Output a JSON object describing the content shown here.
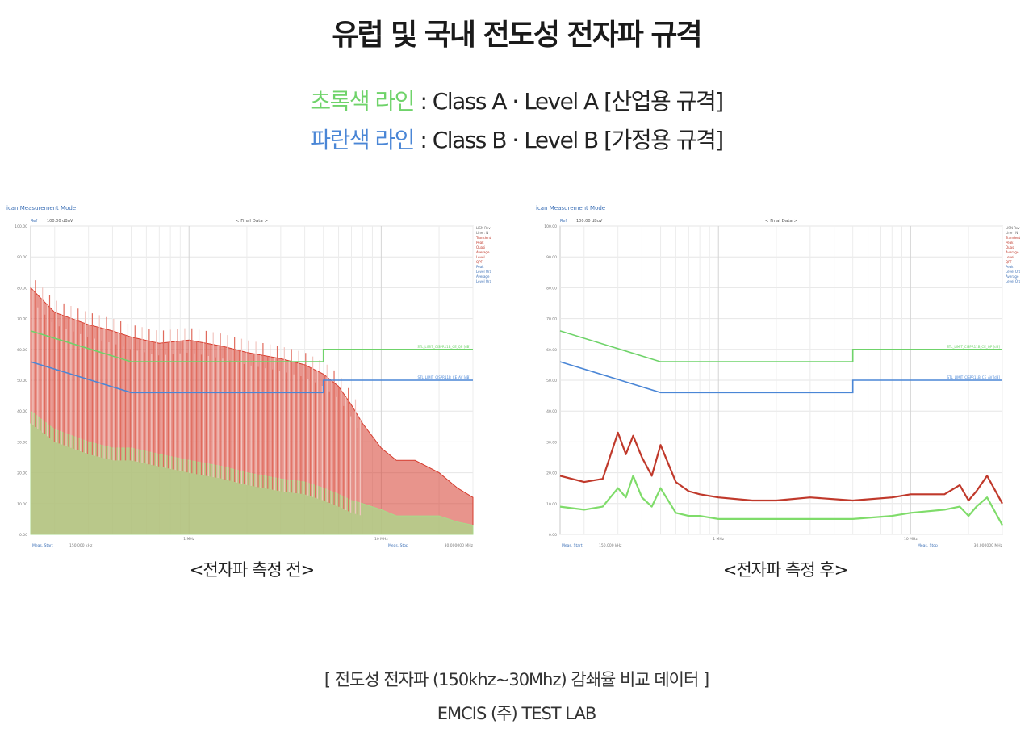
{
  "page": {
    "title": "유럽 및 국내 전도성 전자파 규격",
    "legend": [
      {
        "label": "초록색 라인",
        "text": " : Class A · Level A [산업용 규격]",
        "color": "#6fd36a"
      },
      {
        "label": "파란색 라인",
        "text": " : Class B · Level B [가정용 규격]",
        "color": "#4a86d6"
      }
    ],
    "footer": {
      "line1": "[ 전도성 전자파 (150khz~30Mhz) 감쇄율 비교 데이터 ]",
      "line2": "EMCIS (주) TEST LAB"
    }
  },
  "chart_data": [
    {
      "type": "line",
      "caption": "<전자파 측정 전>",
      "mode_label": "ican Measurement Mode",
      "ref_label": "Ref",
      "ref_value": "100.00 dBuV",
      "header_label": "< Final Data >",
      "x_scale": "log",
      "xlim": [
        0.15,
        30
      ],
      "ylim": [
        0,
        100
      ],
      "y_ticks": [
        "100.00",
        "90.00",
        "80.00",
        "70.00",
        "60.00",
        "50.00",
        "40.00",
        "30.00",
        "20.00",
        "10.00",
        "0.00"
      ],
      "x_ticks": [
        {
          "value": 1,
          "label": "1 MHz"
        },
        {
          "value": 10,
          "label": "10 MHz"
        }
      ],
      "footer_left": "Meas. Start",
      "footer_start": "150.000 kHz",
      "footer_mid": "Meas. Stop",
      "footer_stop": "30.000000 MHz",
      "side_legend": [
        "LISN Rev-1",
        "Line : N",
        "Transient",
        "Peak",
        "Quasi",
        "Average",
        "Level",
        "QPF",
        "Peak",
        "Level Ora",
        "Average",
        "Level Ora"
      ],
      "limit_labels": [
        "STL_LIMIT_CISPR11B_CE_QP [dB]",
        "STL_LIMIT_CISPR11B_CE_AV [dB]"
      ],
      "grid": true,
      "series": [
        {
          "name": "Class A · Level A",
          "color": "#6fd36a",
          "x": [
            0.15,
            0.5,
            0.5,
            5,
            5,
            30
          ],
          "y": [
            66,
            56,
            56,
            56,
            60,
            60
          ]
        },
        {
          "name": "Class B · Level B",
          "color": "#4a86d6",
          "x": [
            0.15,
            0.5,
            0.5,
            5,
            5,
            30
          ],
          "y": [
            56,
            46,
            46,
            46,
            50,
            50
          ]
        },
        {
          "color": "#d63c2e",
          "x": [
            0.15,
            0.2,
            0.3,
            0.4,
            0.5,
            0.7,
            1,
            1.5,
            2,
            3,
            4,
            5,
            6,
            7,
            8,
            10,
            12,
            15,
            20,
            25,
            30
          ],
          "y": [
            80,
            72,
            68,
            66,
            64,
            62,
            63,
            61,
            59,
            57,
            55,
            52,
            48,
            42,
            36,
            28,
            24,
            24,
            20,
            15,
            12
          ]
        },
        {
          "color": "#a9d98a",
          "x": [
            0.15,
            0.2,
            0.3,
            0.4,
            0.5,
            0.7,
            1,
            1.5,
            2,
            3,
            4,
            5,
            6,
            7,
            8,
            10,
            12,
            15,
            20,
            25,
            30
          ],
          "y": [
            40,
            34,
            30,
            28,
            28,
            26,
            24,
            22,
            20,
            18,
            17,
            15,
            13,
            11,
            10,
            8,
            6,
            6,
            6,
            4,
            3
          ]
        }
      ]
    },
    {
      "type": "line",
      "caption": "<전자파 측정 후>",
      "mode_label": "ican Measurement Mode",
      "ref_label": "Ref",
      "ref_value": "100.00 dBuV",
      "header_label": "< Final Data >",
      "x_scale": "log",
      "xlim": [
        0.15,
        30
      ],
      "ylim": [
        0,
        100
      ],
      "y_ticks": [
        "100.00",
        "90.00",
        "80.00",
        "70.00",
        "60.00",
        "50.00",
        "40.00",
        "30.00",
        "20.00",
        "10.00",
        "0.00"
      ],
      "x_ticks": [
        {
          "value": 1,
          "label": "1 MHz"
        },
        {
          "value": 10,
          "label": "10 MHz"
        }
      ],
      "footer_left": "Meas. Start",
      "footer_start": "150.000 kHz",
      "footer_mid": "Meas. Stop",
      "footer_stop": "30.000000 MHz",
      "side_legend": [
        "LISN Rev-1",
        "Line : N",
        "Transient",
        "Peak",
        "Quasi",
        "Average",
        "Level",
        "QPF",
        "Peak",
        "Level Ora",
        "Average",
        "Level Ora"
      ],
      "limit_labels": [
        "STL_LIMIT_CISPR11B_CE_QP [dB]",
        "STL_LIMIT_CISPR11B_CE_AV [dB]"
      ],
      "grid": true,
      "series": [
        {
          "name": "Class A · Level A",
          "color": "#6fd36a",
          "x": [
            0.15,
            0.5,
            0.5,
            5,
            5,
            30
          ],
          "y": [
            66,
            56,
            56,
            56,
            60,
            60
          ]
        },
        {
          "name": "Class B · Level B",
          "color": "#4a86d6",
          "x": [
            0.15,
            0.5,
            0.5,
            5,
            5,
            30
          ],
          "y": [
            56,
            46,
            46,
            46,
            50,
            50
          ]
        },
        {
          "color": "#c0392b",
          "x": [
            0.15,
            0.2,
            0.25,
            0.3,
            0.33,
            0.36,
            0.4,
            0.45,
            0.5,
            0.6,
            0.7,
            0.8,
            1,
            1.5,
            2,
            3,
            5,
            8,
            10,
            15,
            18,
            20,
            22,
            25,
            30
          ],
          "y": [
            19,
            17,
            18,
            33,
            26,
            32,
            25,
            19,
            29,
            17,
            14,
            13,
            12,
            11,
            11,
            12,
            11,
            12,
            13,
            13,
            16,
            11,
            14,
            19,
            10
          ]
        },
        {
          "color": "#7fdc6a",
          "x": [
            0.15,
            0.2,
            0.25,
            0.3,
            0.33,
            0.36,
            0.4,
            0.45,
            0.5,
            0.6,
            0.7,
            0.8,
            1,
            1.5,
            2,
            3,
            5,
            8,
            10,
            15,
            18,
            20,
            22,
            25,
            30
          ],
          "y": [
            9,
            8,
            9,
            15,
            12,
            19,
            12,
            9,
            15,
            7,
            6,
            6,
            5,
            5,
            5,
            5,
            5,
            6,
            7,
            8,
            9,
            6,
            9,
            12,
            3
          ]
        }
      ]
    }
  ]
}
